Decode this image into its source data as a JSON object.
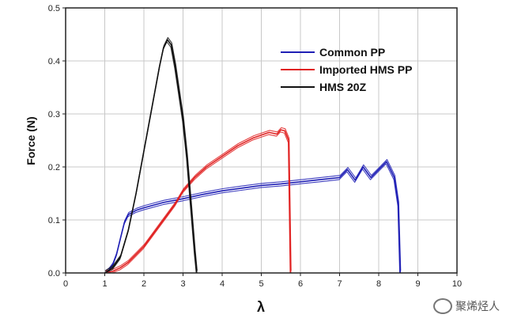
{
  "chart_data": {
    "type": "line",
    "xlabel": "λ",
    "ylabel": "Force (N)",
    "xlim": [
      0,
      10
    ],
    "ylim": [
      0,
      0.5
    ],
    "xticks": [
      "0",
      "1",
      "2",
      "3",
      "4",
      "5",
      "6",
      "7",
      "8",
      "9",
      "10"
    ],
    "yticks": [
      "0.0",
      "0.1",
      "0.2",
      "0.3",
      "0.4",
      "0.5"
    ],
    "grid": true,
    "legend_position": "top-right",
    "series": [
      {
        "name": "Common PP",
        "color": "#1f1fb5",
        "points": [
          [
            1.0,
            0.0
          ],
          [
            1.1,
            0.005
          ],
          [
            1.2,
            0.015
          ],
          [
            1.3,
            0.035
          ],
          [
            1.4,
            0.065
          ],
          [
            1.5,
            0.095
          ],
          [
            1.6,
            0.11
          ],
          [
            1.8,
            0.118
          ],
          [
            2.0,
            0.123
          ],
          [
            2.5,
            0.133
          ],
          [
            3.0,
            0.14
          ],
          [
            3.5,
            0.148
          ],
          [
            4.0,
            0.155
          ],
          [
            4.5,
            0.16
          ],
          [
            5.0,
            0.165
          ],
          [
            5.5,
            0.168
          ],
          [
            6.0,
            0.172
          ],
          [
            6.5,
            0.176
          ],
          [
            7.0,
            0.18
          ],
          [
            7.2,
            0.195
          ],
          [
            7.4,
            0.175
          ],
          [
            7.6,
            0.2
          ],
          [
            7.8,
            0.18
          ],
          [
            8.0,
            0.195
          ],
          [
            8.2,
            0.21
          ],
          [
            8.4,
            0.18
          ],
          [
            8.5,
            0.13
          ],
          [
            8.55,
            0.0
          ]
        ]
      },
      {
        "name": "Imported HMS PP",
        "color": "#e02020",
        "points": [
          [
            1.0,
            0.0
          ],
          [
            1.2,
            0.003
          ],
          [
            1.4,
            0.01
          ],
          [
            1.6,
            0.02
          ],
          [
            1.8,
            0.035
          ],
          [
            2.0,
            0.05
          ],
          [
            2.2,
            0.07
          ],
          [
            2.4,
            0.09
          ],
          [
            2.6,
            0.11
          ],
          [
            2.8,
            0.13
          ],
          [
            3.0,
            0.155
          ],
          [
            3.3,
            0.18
          ],
          [
            3.6,
            0.2
          ],
          [
            4.0,
            0.22
          ],
          [
            4.4,
            0.24
          ],
          [
            4.8,
            0.255
          ],
          [
            5.0,
            0.26
          ],
          [
            5.2,
            0.265
          ],
          [
            5.4,
            0.262
          ],
          [
            5.5,
            0.27
          ],
          [
            5.6,
            0.268
          ],
          [
            5.7,
            0.25
          ],
          [
            5.75,
            0.0
          ]
        ]
      },
      {
        "name": "HMS 20Z",
        "color": "#111111",
        "points": [
          [
            1.0,
            0.0
          ],
          [
            1.2,
            0.01
          ],
          [
            1.4,
            0.03
          ],
          [
            1.6,
            0.08
          ],
          [
            1.8,
            0.15
          ],
          [
            2.0,
            0.23
          ],
          [
            2.2,
            0.31
          ],
          [
            2.4,
            0.39
          ],
          [
            2.5,
            0.425
          ],
          [
            2.6,
            0.44
          ],
          [
            2.7,
            0.43
          ],
          [
            2.8,
            0.39
          ],
          [
            2.9,
            0.34
          ],
          [
            3.0,
            0.29
          ],
          [
            3.1,
            0.22
          ],
          [
            3.2,
            0.13
          ],
          [
            3.3,
            0.04
          ],
          [
            3.35,
            0.0
          ]
        ]
      }
    ]
  },
  "watermark": {
    "text": "聚烯烃人",
    "icon": "wechat-icon"
  }
}
